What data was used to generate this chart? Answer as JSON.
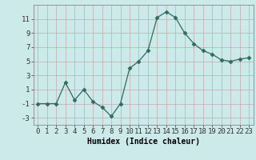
{
  "x": [
    0,
    1,
    2,
    3,
    4,
    5,
    6,
    7,
    8,
    9,
    10,
    11,
    12,
    13,
    14,
    15,
    16,
    17,
    18,
    19,
    20,
    21,
    22,
    23
  ],
  "y": [
    -1,
    -1,
    -1,
    2,
    -0.5,
    1,
    -0.7,
    -1.5,
    -2.8,
    -1,
    4,
    5,
    6.5,
    11.2,
    12,
    11.2,
    9,
    7.5,
    6.5,
    6,
    5.2,
    5,
    5.3,
    5.5
  ],
  "line_color": "#2e6b5e",
  "marker": "D",
  "marker_size": 2.5,
  "bg_color": "#cceaea",
  "grid_color": "#c4a8a8",
  "xlabel": "Humidex (Indice chaleur)",
  "xlim": [
    -0.5,
    23.5
  ],
  "ylim": [
    -4,
    13
  ],
  "yticks": [
    -3,
    -1,
    1,
    3,
    5,
    7,
    9,
    11
  ],
  "xticks": [
    0,
    1,
    2,
    3,
    4,
    5,
    6,
    7,
    8,
    9,
    10,
    11,
    12,
    13,
    14,
    15,
    16,
    17,
    18,
    19,
    20,
    21,
    22,
    23
  ],
  "xlabel_fontsize": 7,
  "tick_fontsize": 6.5
}
